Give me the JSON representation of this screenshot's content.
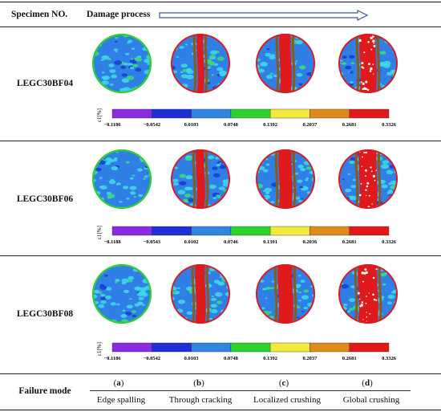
{
  "header": {
    "specimen_label": "Specimen NO.",
    "process_label": "Damage process"
  },
  "specimens": [
    {
      "id": "LEGC30BF04",
      "stages": [
        "a",
        "b",
        "c",
        "d"
      ]
    },
    {
      "id": "LEGC30BF06",
      "stages": [
        "a",
        "b",
        "c",
        "d"
      ]
    },
    {
      "id": "LEGC30BF08",
      "stages": [
        "a",
        "b",
        "c",
        "d"
      ]
    }
  ],
  "colorbars": [
    {
      "label": "ε1[%]",
      "ticks": [
        "−0.1186",
        "−0.0542",
        "0.0103",
        "0.0748",
        "0.1392",
        "0.2037",
        "0.2681",
        "0.3326"
      ]
    },
    {
      "label": "ε1[%]",
      "ticks": [
        "−0.1188",
        "−0.0543",
        "0.0102",
        "0.0746",
        "0.1391",
        "0.2036",
        "0.2681",
        "0.3326"
      ]
    },
    {
      "label": "ε1[%]",
      "ticks": [
        "−0.1186",
        "−0.0542",
        "0.0103",
        "0.0748",
        "0.1392",
        "0.2037",
        "0.2681",
        "0.3326"
      ]
    }
  ],
  "colorbar_colors": [
    "#8a2be2",
    "#1e2fd6",
    "#2f86e0",
    "#2ed12e",
    "#f2e93a",
    "#e08a1e",
    "#e01a1a"
  ],
  "failure": {
    "label": "Failure mode",
    "letters": [
      "(a)",
      "(b)",
      "(c)",
      "(d)"
    ],
    "modes": [
      "Edge spalling",
      "Through cracking",
      "Localized crushing",
      "Global crushing"
    ]
  },
  "colors": {
    "field_blue": "#2f7fe6",
    "field_cyan": "#3fd6e6",
    "crack_red": "#e01a1a",
    "crack_brown": "#8a5a1a",
    "rim_green": "#2ed12e"
  }
}
